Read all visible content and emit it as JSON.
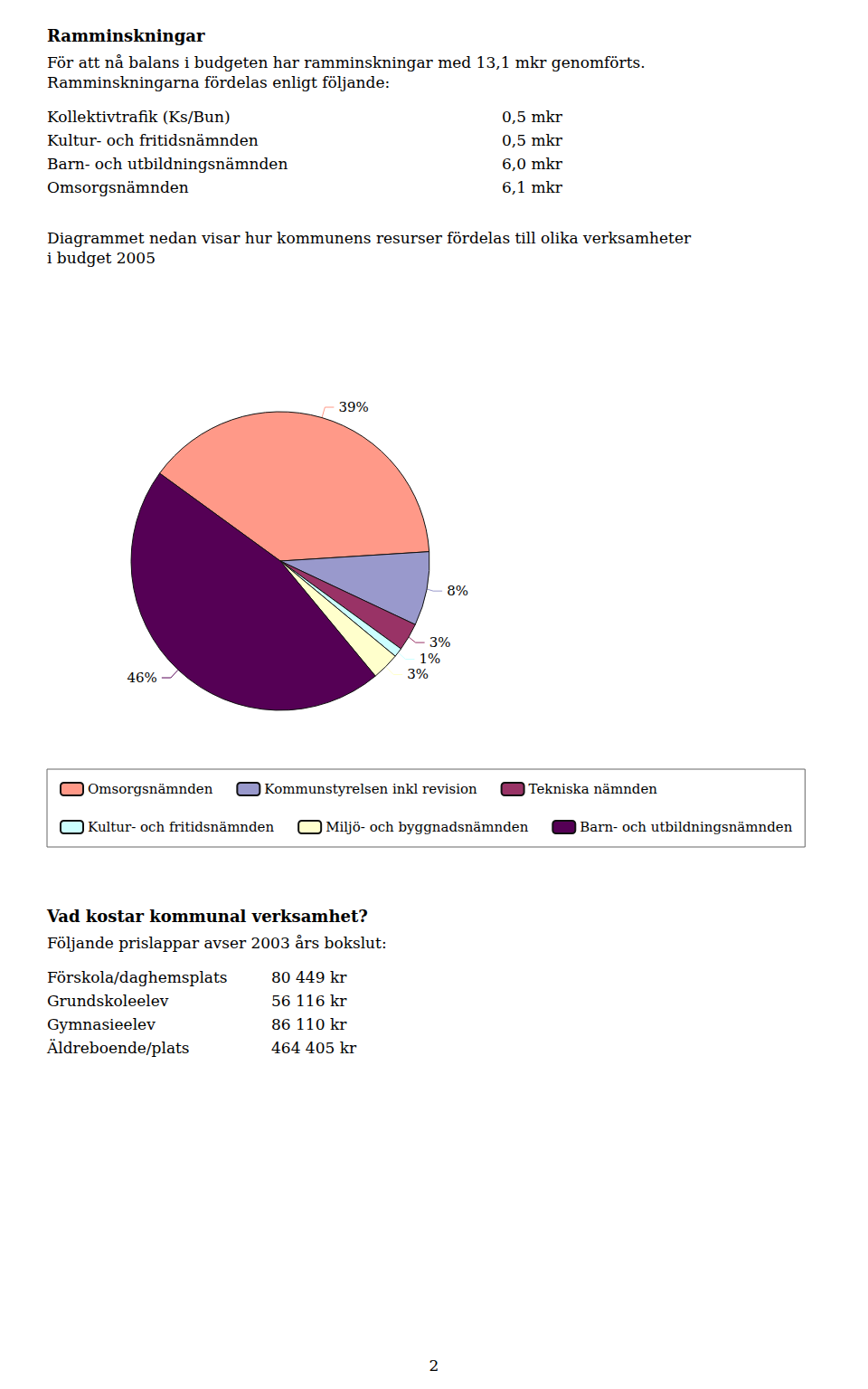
{
  "chart_data": {
    "type": "pie",
    "categories": [
      "Omsorgsnämnden",
      "Kommunstyrelsen inkl revision",
      "Tekniska nämnden",
      "Kultur- och fritidsnämnden",
      "Miljö- och byggnadsnämnden",
      "Barn- och utbildningsnämnden"
    ],
    "values": [
      39,
      8,
      3,
      1,
      3,
      46
    ],
    "value_labels": [
      "39%",
      "8%",
      "3%",
      "1%",
      "3%",
      "46%"
    ],
    "colors": [
      "#FF9988",
      "#9999CC",
      "#993366",
      "#CCFFFF",
      "#FFFFCC",
      "#550055"
    ],
    "data_labels": true,
    "legend": "bottom",
    "annotations": [
      {
        "heading": "Ramminskningar",
        "lines": [
          "För att nå balans i budgeten har ramminskningar med 13,1 mkr genomförts.",
          "Ramminskningarna fördelas enligt följande:"
        ],
        "rows": [
          [
            "Kollektivtrafik (Ks/Bun)",
            "0,5 mkr"
          ],
          [
            "Kultur- och fritidsnämnden",
            "0,5 mkr"
          ],
          [
            "Barn- och utbildningsnämnden",
            "6,0 mkr"
          ],
          [
            "Omsorgsnämnden",
            "6,1 mkr"
          ]
        ]
      },
      {
        "lines": [
          "Diagrammet nedan visar hur kommunens resurser fördelas till olika verksamheter",
          "i budget 2005"
        ]
      },
      {
        "heading": "Vad kostar kommunal verksamhet?",
        "lines": [
          "Följande prislappar avser 2003 års bokslut:"
        ],
        "rows": [
          [
            "Förskola/daghemsplats",
            "80 449 kr"
          ],
          [
            "Grundskoleelev",
            "56 116 kr"
          ],
          [
            "Gymnasieelev",
            "86 110 kr"
          ],
          [
            "Äldreboende/plats",
            "464 405 kr"
          ]
        ]
      }
    ],
    "footer": "2"
  }
}
